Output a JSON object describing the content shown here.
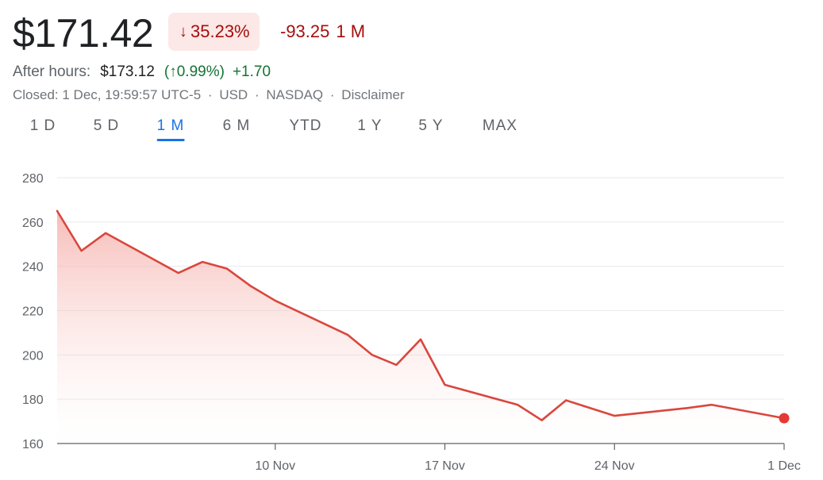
{
  "quote": {
    "price": "$171.42",
    "change_pct": "35.23%",
    "change_abs": "-93.25",
    "period": "1 M",
    "after_hours_label": "After hours:",
    "after_hours_price": "$173.12",
    "after_hours_pct": "(↑0.99%)",
    "after_hours_abs": "+1.70",
    "closed_text": "Closed: 1 Dec, 19:59:57 UTC-5",
    "currency": "USD",
    "exchange": "NASDAQ",
    "disclaimer": "Disclaimer",
    "separator": "·",
    "down_arrow_icon": "arrow-down-icon"
  },
  "colors": {
    "negative": "#a50e0e",
    "negative_bg": "#fce8e6",
    "positive": "#137333",
    "line": "#d9473d",
    "accent": "#1a73e8",
    "grid": "#e8eaed"
  },
  "tabs": [
    {
      "label": "1 D",
      "active": false
    },
    {
      "label": "5 D",
      "active": false
    },
    {
      "label": "1 M",
      "active": true
    },
    {
      "label": "6 M",
      "active": false
    },
    {
      "label": "YTD",
      "active": false
    },
    {
      "label": "1 Y",
      "active": false
    },
    {
      "label": "5 Y",
      "active": false
    },
    {
      "label": "MAX",
      "active": false
    }
  ],
  "chart_data": {
    "type": "area",
    "title": "",
    "xlabel": "",
    "ylabel": "",
    "ylim": [
      160,
      280
    ],
    "yticks": [
      160,
      180,
      200,
      220,
      240,
      260,
      280
    ],
    "xticks": [
      {
        "label": "10 Nov",
        "x": "2023-11-10"
      },
      {
        "label": "17 Nov",
        "x": "2023-11-17"
      },
      {
        "label": "24 Nov",
        "x": "2023-11-24"
      },
      {
        "label": "1 Dec",
        "x": "2023-12-01"
      }
    ],
    "xlim": [
      "2023-11-01",
      "2023-12-01"
    ],
    "grid": true,
    "series": [
      {
        "points": [
          {
            "x": "2023-11-01",
            "y": 265
          },
          {
            "x": "2023-11-02",
            "y": 247
          },
          {
            "x": "2023-11-03",
            "y": 255
          },
          {
            "x": "2023-11-06",
            "y": 237
          },
          {
            "x": "2023-11-07",
            "y": 242
          },
          {
            "x": "2023-11-08",
            "y": 239
          },
          {
            "x": "2023-11-09",
            "y": 231
          },
          {
            "x": "2023-11-10",
            "y": 224.5
          },
          {
            "x": "2023-11-13",
            "y": 209
          },
          {
            "x": "2023-11-14",
            "y": 200
          },
          {
            "x": "2023-11-15",
            "y": 195.5
          },
          {
            "x": "2023-11-16",
            "y": 207
          },
          {
            "x": "2023-11-17",
            "y": 186.5
          },
          {
            "x": "2023-11-20",
            "y": 177.5
          },
          {
            "x": "2023-11-21",
            "y": 170.5
          },
          {
            "x": "2023-11-22",
            "y": 179.5
          },
          {
            "x": "2023-11-24",
            "y": 172.5
          },
          {
            "x": "2023-11-27",
            "y": 176
          },
          {
            "x": "2023-11-28",
            "y": 177.5
          },
          {
            "x": "2023-12-01",
            "y": 171.42
          }
        ]
      }
    ]
  }
}
